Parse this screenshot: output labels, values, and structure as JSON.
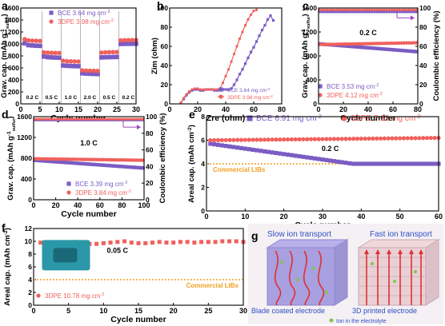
{
  "colors": {
    "bce": "#7b5cc4",
    "tdpe": "#f0605c",
    "commercial": "#f0a020",
    "axis": "#000000",
    "ion": "#7cc850"
  },
  "chart_data": [
    {
      "id": "a",
      "panel_label": "a",
      "type": "scatter",
      "ylabel": "Grav. cap. (mAh g",
      "ylabel_sup": "-1",
      "ylabel_sub": "sulfur",
      "ylabel_tail": ")",
      "xlabel": "Cycle number",
      "xlim": [
        0,
        30
      ],
      "ylim": [
        0,
        1600
      ],
      "xticks": [
        "0",
        "5",
        "10",
        "15",
        "20",
        "25",
        "30"
      ],
      "yticks": [
        "0",
        "200",
        "400",
        "600",
        "800",
        "1000",
        "1200",
        "1400",
        "1600"
      ],
      "legend": [
        {
          "key": "bce",
          "text": "BCE",
          "value": "3.64 mg cm",
          "sup": "-2"
        },
        {
          "key": "tdpe",
          "text": "3DPE",
          "value": "3.98 mg cm",
          "sup": "-2"
        }
      ],
      "rate_labels": [
        "0.2 C",
        "0.5 C",
        "1.0 C",
        "2.0 C",
        "0.5 C",
        "0.2 C"
      ],
      "rate_boundaries": [
        5,
        10,
        15,
        20,
        25
      ],
      "series": [
        {
          "key": "bce",
          "x": [
            1,
            2,
            3,
            4,
            5,
            6,
            7,
            8,
            9,
            10,
            11,
            12,
            13,
            14,
            15,
            16,
            17,
            18,
            19,
            20,
            21,
            22,
            23,
            24,
            25,
            26,
            27,
            28,
            29,
            30
          ],
          "y": [
            1010,
            980,
            975,
            970,
            968,
            790,
            780,
            775,
            772,
            770,
            640,
            635,
            632,
            630,
            628,
            510,
            505,
            502,
            500,
            498,
            775,
            778,
            780,
            782,
            783,
            1000,
            1002,
            1003,
            1003,
            1004
          ]
        },
        {
          "key": "tdpe",
          "x": [
            1,
            2,
            3,
            4,
            5,
            6,
            7,
            8,
            9,
            10,
            11,
            12,
            13,
            14,
            15,
            16,
            17,
            18,
            19,
            20,
            21,
            22,
            23,
            24,
            25,
            26,
            27,
            28,
            29,
            30
          ],
          "y": [
            1080,
            1060,
            1055,
            1052,
            1050,
            860,
            855,
            852,
            850,
            850,
            720,
            712,
            710,
            708,
            706,
            560,
            555,
            553,
            552,
            550,
            855,
            860,
            862,
            864,
            865,
            1060,
            1062,
            1064,
            1065,
            1066
          ]
        }
      ]
    },
    {
      "id": "b",
      "panel_label": "b",
      "type": "line",
      "ylabel": "Zim (ohm)",
      "xlabel": "Zre (ohm)",
      "xlim": [
        0,
        80
      ],
      "ylim": [
        0,
        100
      ],
      "xticks": [
        "0",
        "20",
        "40",
        "60",
        "80"
      ],
      "yticks": [
        "0",
        "20",
        "40",
        "60",
        "80",
        "100"
      ],
      "legend": [
        {
          "key": "bce",
          "text": "BCE 3.64 mg cm",
          "sup": "-2"
        },
        {
          "key": "tdpe",
          "text": "3DPE 3.98 mg cm",
          "sup": "-2"
        }
      ],
      "series": [
        {
          "key": "bce",
          "x": [
            8,
            10,
            12,
            14,
            16,
            18,
            20,
            22,
            24,
            26,
            28,
            30,
            32,
            34,
            36,
            38,
            40,
            42,
            44,
            46,
            48,
            50,
            52,
            54,
            56,
            58,
            60,
            62,
            64,
            66,
            68,
            70,
            72,
            74
          ],
          "y": [
            1,
            5,
            9,
            12,
            14,
            15,
            15,
            14,
            14,
            15,
            15,
            15,
            14,
            14,
            15,
            15,
            15,
            15,
            16,
            20,
            25,
            31,
            36,
            42,
            48,
            54,
            59,
            65,
            71,
            77,
            82,
            88,
            92,
            87
          ]
        },
        {
          "key": "tdpe",
          "x": [
            8,
            10,
            12,
            14,
            16,
            18,
            20,
            22,
            24,
            26,
            28,
            30,
            32,
            34,
            36,
            38,
            40,
            42,
            44,
            46,
            48,
            50,
            52,
            54,
            56,
            58,
            60,
            62
          ],
          "y": [
            1,
            6,
            10,
            13,
            15,
            16,
            16,
            15,
            15,
            15,
            15,
            15,
            15,
            15,
            16,
            22,
            29,
            36,
            44,
            52,
            60,
            68,
            75,
            82,
            88,
            93,
            97,
            98
          ]
        }
      ]
    },
    {
      "id": "c",
      "panel_label": "c",
      "type": "scatter",
      "ylabel": "Grav. cap. (mAh g",
      "ylabel_sup": "-1",
      "ylabel_sub": "sulfur",
      "ylabel_tail": ")",
      "y2label": "Coulombic efficiency (%)",
      "xlabel": "Cycle number",
      "xlim": [
        0,
        80
      ],
      "ylim": [
        0,
        1600
      ],
      "y2lim": [
        0,
        100
      ],
      "xticks": [
        "0",
        "20",
        "40",
        "60",
        "80"
      ],
      "yticks": [
        "0",
        "400",
        "800",
        "1200",
        "1600"
      ],
      "y2ticks": [
        "0",
        "20",
        "40",
        "60",
        "80",
        "100"
      ],
      "rate": "0.2 C",
      "legend": [
        {
          "key": "bce",
          "text": "BCE 3.53 mg cm",
          "sup": "-2"
        },
        {
          "key": "tdpe",
          "text": "3DPE 4.12 mg cm",
          "sup": "-2"
        }
      ],
      "capacity": {
        "bce": {
          "start": 1000,
          "end": 870
        },
        "tdpe": {
          "start": 990,
          "end": 1020
        }
      },
      "efficiency": {
        "bce": 96,
        "tdpe": 98
      }
    },
    {
      "id": "d",
      "panel_label": "d",
      "type": "scatter",
      "ylabel": "Grav. cap. (mAh g",
      "ylabel_sup": "-1",
      "ylabel_sub": "sulfur",
      "ylabel_tail": ")",
      "y2label": "Coulombic efficiency (%)",
      "xlabel": "Cycle number",
      "xlim": [
        0,
        100
      ],
      "ylim": [
        0,
        1600
      ],
      "y2lim": [
        0,
        100
      ],
      "xticks": [
        "0",
        "20",
        "40",
        "60",
        "80",
        "100"
      ],
      "yticks": [
        "0",
        "400",
        "800",
        "1200",
        "1600"
      ],
      "y2ticks": [
        "0",
        "20",
        "40",
        "60",
        "80",
        "100"
      ],
      "rate": "1.0 C",
      "legend": [
        {
          "key": "bce",
          "text": "BCE 3.39 mg cm",
          "sup": "-2"
        },
        {
          "key": "tdpe",
          "text": "3DPE 3.84 mg cm",
          "sup": "-2"
        }
      ],
      "capacity": {
        "bce": {
          "start": 760,
          "end": 610
        },
        "tdpe": {
          "start": 790,
          "end": 760
        }
      },
      "efficiency": {
        "bce": 96,
        "tdpe": 97
      }
    },
    {
      "id": "e",
      "panel_label": "e",
      "type": "scatter",
      "ylabel": "Areal cap. (mAh cm",
      "ylabel_sup": "-2",
      "ylabel_tail": ")",
      "xlabel": "Cycle number",
      "xlim": [
        0,
        60
      ],
      "ylim": [
        0,
        8
      ],
      "xticks": [
        "0",
        "10",
        "20",
        "30",
        "40",
        "50",
        "60"
      ],
      "yticks": [
        "0",
        "2",
        "4",
        "6",
        "8"
      ],
      "rate": "0.2 C",
      "reference_line": {
        "y": 4,
        "label": "Commercial LIBs"
      },
      "legend": [
        {
          "key": "bce",
          "text": "BCE 6.91 mg cm",
          "sup": "-2"
        },
        {
          "key": "tdpe",
          "text": "3DPE 7.32 mg cm",
          "sup": "-2"
        }
      ],
      "capacity": {
        "bce": {
          "start": 5.7,
          "end": 4.0
        },
        "tdpe": {
          "start": 6.0,
          "end": 6.2
        }
      }
    },
    {
      "id": "f",
      "panel_label": "f",
      "type": "scatter",
      "ylabel": "Areal cap. (mAh cm",
      "ylabel_sup": "-2",
      "ylabel_tail": ")",
      "xlabel": "Cycle number",
      "xlim": [
        0,
        30
      ],
      "ylim": [
        0,
        12
      ],
      "xticks": [
        "0",
        "5",
        "10",
        "15",
        "20",
        "25",
        "30"
      ],
      "yticks": [
        "0",
        "2",
        "4",
        "6",
        "8",
        "10",
        "12"
      ],
      "rate": "0.05 C",
      "reference_line": {
        "y": 4,
        "label": "Commercial LIBs"
      },
      "legend": [
        {
          "key": "tdpe",
          "text": "3DPE 10.78 mg cm",
          "sup": "-2"
        }
      ],
      "series": [
        {
          "key": "tdpe",
          "x": [
            1,
            2,
            3,
            4,
            5,
            6,
            7,
            8,
            9,
            10,
            11,
            12,
            13,
            14,
            15,
            16,
            17,
            18,
            19,
            20,
            21,
            22,
            23,
            24,
            25,
            26,
            27,
            28,
            29,
            30
          ],
          "y": [
            9.8,
            9.7,
            9.5,
            9.6,
            9.8,
            9.9,
            9.7,
            9.6,
            9.6,
            9.7,
            9.8,
            9.9,
            10.0,
            9.8,
            9.7,
            9.7,
            9.8,
            9.9,
            9.8,
            9.8,
            9.9,
            9.9,
            9.8,
            9.9,
            9.9,
            9.9,
            10.0,
            10.0,
            10.0,
            9.9
          ]
        }
      ]
    }
  ],
  "panel_g": {
    "label": "g",
    "left_title": "Slow ion transport",
    "right_title": "Fast ion transport",
    "left_caption": "Blade coated electrode",
    "right_caption": "3D printed electrode",
    "legend": "Ion in the electrolyte"
  }
}
